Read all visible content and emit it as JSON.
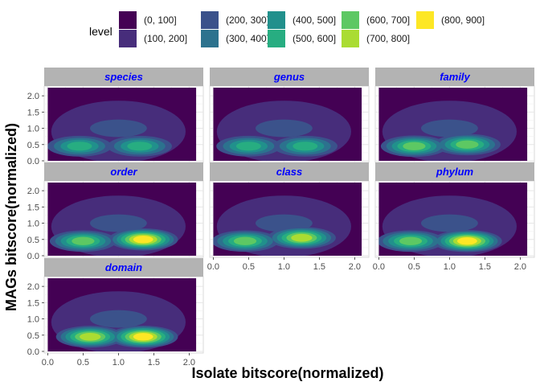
{
  "chart_data": {
    "type": "heatmap",
    "subtype": "faceted 2D density contour (filled)",
    "xlabel": "Isolate bitscore(normalized)",
    "ylabel": "MAGs bitscore(normalized)",
    "xlim": [
      -0.05,
      2.2
    ],
    "ylim": [
      -0.05,
      2.3
    ],
    "x_ticks": [
      "0.0",
      "0.5",
      "1.0",
      "1.5",
      "2.0"
    ],
    "y_ticks": [
      "0.0",
      "0.5",
      "1.0",
      "1.5",
      "2.0"
    ],
    "x_tick_values": [
      0,
      0.5,
      1,
      1.5,
      2
    ],
    "y_tick_values": [
      0,
      0.5,
      1,
      1.5,
      2
    ],
    "grid": true,
    "legend": {
      "title": "level",
      "position": "top",
      "entries": [
        {
          "label": "(0, 100]",
          "color": "#440154"
        },
        {
          "label": "(100, 200]",
          "color": "#472D7B"
        },
        {
          "label": "(200, 300]",
          "color": "#3B528B"
        },
        {
          "label": "(300, 400]",
          "color": "#2C728E"
        },
        {
          "label": "(400, 500]",
          "color": "#21908C"
        },
        {
          "label": "(500, 600]",
          "color": "#27AD81"
        },
        {
          "label": "(600, 700]",
          "color": "#5DC863"
        },
        {
          "label": "(700, 800]",
          "color": "#AADC32"
        },
        {
          "label": "(800, 900]",
          "color": "#FDE725"
        }
      ]
    },
    "facet_strip_color": "#b3b3b3",
    "facet_label_color": "#0000ff",
    "facets": [
      {
        "name": "species",
        "peaks": [
          {
            "x": 0.45,
            "y": 0.45,
            "level": 6
          },
          {
            "x": 1.3,
            "y": 0.45,
            "level": 6
          },
          {
            "x": 1.0,
            "y": 1.0,
            "level": 3
          }
        ]
      },
      {
        "name": "genus",
        "peaks": [
          {
            "x": 0.5,
            "y": 0.45,
            "level": 6
          },
          {
            "x": 1.3,
            "y": 0.45,
            "level": 6
          },
          {
            "x": 1.0,
            "y": 1.0,
            "level": 3
          }
        ]
      },
      {
        "name": "family",
        "peaks": [
          {
            "x": 0.5,
            "y": 0.45,
            "level": 7
          },
          {
            "x": 1.25,
            "y": 0.5,
            "level": 7
          },
          {
            "x": 1.0,
            "y": 1.0,
            "level": 3
          }
        ]
      },
      {
        "name": "order",
        "peaks": [
          {
            "x": 0.5,
            "y": 0.45,
            "level": 7
          },
          {
            "x": 1.35,
            "y": 0.5,
            "level": 9
          },
          {
            "x": 1.0,
            "y": 1.0,
            "level": 3
          }
        ]
      },
      {
        "name": "class",
        "peaks": [
          {
            "x": 0.45,
            "y": 0.45,
            "level": 7
          },
          {
            "x": 1.25,
            "y": 0.55,
            "level": 8
          },
          {
            "x": 1.0,
            "y": 1.0,
            "level": 3
          }
        ]
      },
      {
        "name": "phylum",
        "peaks": [
          {
            "x": 0.45,
            "y": 0.45,
            "level": 7
          },
          {
            "x": 1.25,
            "y": 0.45,
            "level": 9
          },
          {
            "x": 1.0,
            "y": 1.0,
            "level": 3
          }
        ]
      },
      {
        "name": "domain",
        "peaks": [
          {
            "x": 0.6,
            "y": 0.45,
            "level": 8
          },
          {
            "x": 1.35,
            "y": 0.45,
            "level": 9
          },
          {
            "x": 1.0,
            "y": 1.0,
            "level": 3
          }
        ]
      }
    ]
  }
}
